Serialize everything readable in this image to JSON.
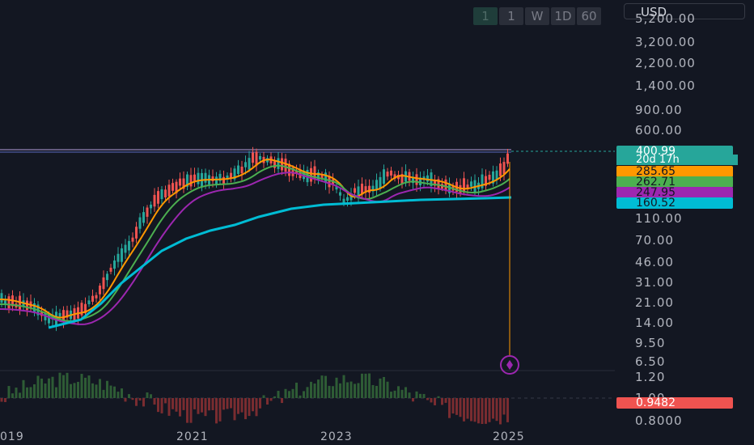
{
  "timeframes": [
    "1",
    "1",
    "W",
    "1D",
    "60"
  ],
  "currency": "USD",
  "y_axis": {
    "price_labels": [
      "5,200.00",
      "3,200.00",
      "2,200.00",
      "1,400.00",
      "900.00",
      "600.00",
      "110.00",
      "70.00",
      "46.00",
      "31.00",
      "21.00",
      "14.00",
      "9.50",
      "6.50"
    ],
    "indicator_labels": [
      "1.20",
      "1.00",
      "0.8000"
    ]
  },
  "price_tags": {
    "last": "400.99",
    "countdown": "20d 17h",
    "ma1": "285.65",
    "ma2": "262.71",
    "ma3": "247.95",
    "ma4": "160.52",
    "indicator": "0.9482"
  },
  "x_axis": {
    "labels": [
      "019",
      "2021",
      "2023",
      "2025"
    ]
  },
  "colors": {
    "up": "#26a69a",
    "down": "#ef5350",
    "ma1": "#ff9800",
    "ma2": "#4caf50",
    "ma3": "#9c27b0",
    "ma4": "#00bcd4",
    "marker": "#9c27b0",
    "background": "#131722"
  }
}
